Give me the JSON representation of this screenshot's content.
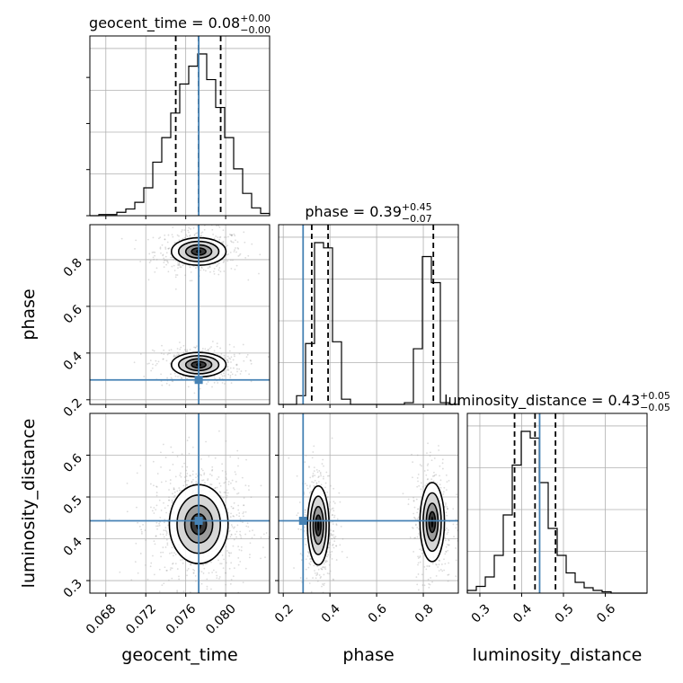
{
  "chart_data": {
    "type": "corner",
    "truth_color": "#4682b4",
    "parameters": [
      "geocent_time",
      "phase",
      "luminosity_distance"
    ],
    "axis_labels": {
      "geocent_time": "geocent_time",
      "phase": "phase",
      "luminosity_distance": "luminosity_distance"
    },
    "titles": {
      "geocent_time": {
        "name": "geocent_time",
        "median": "0.08",
        "plus": "+0.00",
        "minus": "−0.00"
      },
      "phase": {
        "name": "phase",
        "median": "0.39",
        "plus": "+0.45",
        "minus": "−0.07"
      },
      "luminosity_distance": {
        "name": "luminosity_distance",
        "median": "0.43",
        "plus": "+0.05",
        "minus": "−0.05"
      }
    },
    "ranges": {
      "geocent_time": [
        0.0664,
        0.0844
      ],
      "phase": [
        0.18,
        0.95
      ],
      "luminosity_distance": [
        0.27,
        0.7
      ]
    },
    "ticks": {
      "geocent_time": [
        0.068,
        0.072,
        0.076,
        0.08
      ],
      "phase": [
        0.2,
        0.4,
        0.6,
        0.8
      ],
      "luminosity_distance": [
        0.3,
        0.4,
        0.5,
        0.6
      ]
    },
    "tick_labels": {
      "geocent_time": [
        "0.068",
        "0.072",
        "0.076",
        "0.080"
      ],
      "phase": [
        "0.2",
        "0.4",
        "0.6",
        "0.8"
      ],
      "luminosity_distance": [
        "0.3",
        "0.4",
        "0.5",
        "0.6"
      ]
    },
    "truths": {
      "geocent_time": 0.0773,
      "phase": 0.285,
      "luminosity_distance": 0.443
    },
    "quantiles": {
      "geocent_time": [
        0.075,
        0.0773,
        0.0795
      ],
      "phase": [
        0.322,
        0.392,
        0.843
      ],
      "luminosity_distance": [
        0.383,
        0.432,
        0.481
      ]
    },
    "histograms": {
      "geocent_time": {
        "edges": [
          0.0664,
          0.0673,
          0.0682,
          0.0691,
          0.07,
          0.0709,
          0.0718,
          0.0727,
          0.0736,
          0.0745,
          0.0754,
          0.0763,
          0.0772,
          0.0781,
          0.079,
          0.0799,
          0.0808,
          0.0817,
          0.0826,
          0.0835,
          0.0844
        ],
        "counts": [
          0,
          1,
          1,
          3,
          6,
          12,
          25,
          48,
          70,
          92,
          118,
          134,
          145,
          122,
          97,
          70,
          42,
          20,
          7,
          2
        ]
      },
      "phase": {
        "edges": [
          0.18,
          0.2185,
          0.257,
          0.2955,
          0.334,
          0.3725,
          0.411,
          0.4495,
          0.488,
          0.5265,
          0.565,
          0.6035,
          0.642,
          0.6805,
          0.719,
          0.7575,
          0.796,
          0.8345,
          0.873,
          0.9115,
          0.95
        ],
        "counts": [
          0,
          0,
          5,
          35,
          93,
          90,
          36,
          3,
          0,
          0,
          0,
          0,
          0,
          0,
          1,
          32,
          85,
          70,
          1,
          0
        ]
      },
      "luminosity_distance": {
        "edges": [
          0.27,
          0.2915,
          0.313,
          0.3345,
          0.356,
          0.3775,
          0.399,
          0.4205,
          0.442,
          0.4635,
          0.485,
          0.5065,
          0.528,
          0.5495,
          0.571,
          0.5925,
          0.614,
          0.6355,
          0.657,
          0.6785,
          0.7
        ],
        "counts": [
          2,
          5,
          12,
          28,
          58,
          95,
          120,
          115,
          82,
          48,
          28,
          15,
          8,
          4,
          2,
          1,
          0,
          0,
          0,
          0
        ]
      }
    },
    "blobs": [
      {
        "x": "geocent_time",
        "y": "phase",
        "center": [
          0.0773,
          0.835
        ],
        "sigma": [
          0.0013,
          0.028
        ],
        "weight": 0.55
      },
      {
        "x": "geocent_time",
        "y": "phase",
        "center": [
          0.0773,
          0.35
        ],
        "sigma": [
          0.0013,
          0.025
        ],
        "weight": 0.45
      },
      {
        "x": "geocent_time",
        "y": "luminosity_distance",
        "center": [
          0.0773,
          0.435
        ],
        "sigma": [
          0.0014,
          0.045
        ],
        "weight": 1.0
      },
      {
        "x": "phase",
        "y": "luminosity_distance",
        "center": [
          0.35,
          0.432
        ],
        "sigma": [
          0.022,
          0.045
        ],
        "weight": 0.55
      },
      {
        "x": "phase",
        "y": "luminosity_distance",
        "center": [
          0.838,
          0.44
        ],
        "sigma": [
          0.025,
          0.045
        ],
        "weight": 0.45
      }
    ],
    "grid": true
  }
}
